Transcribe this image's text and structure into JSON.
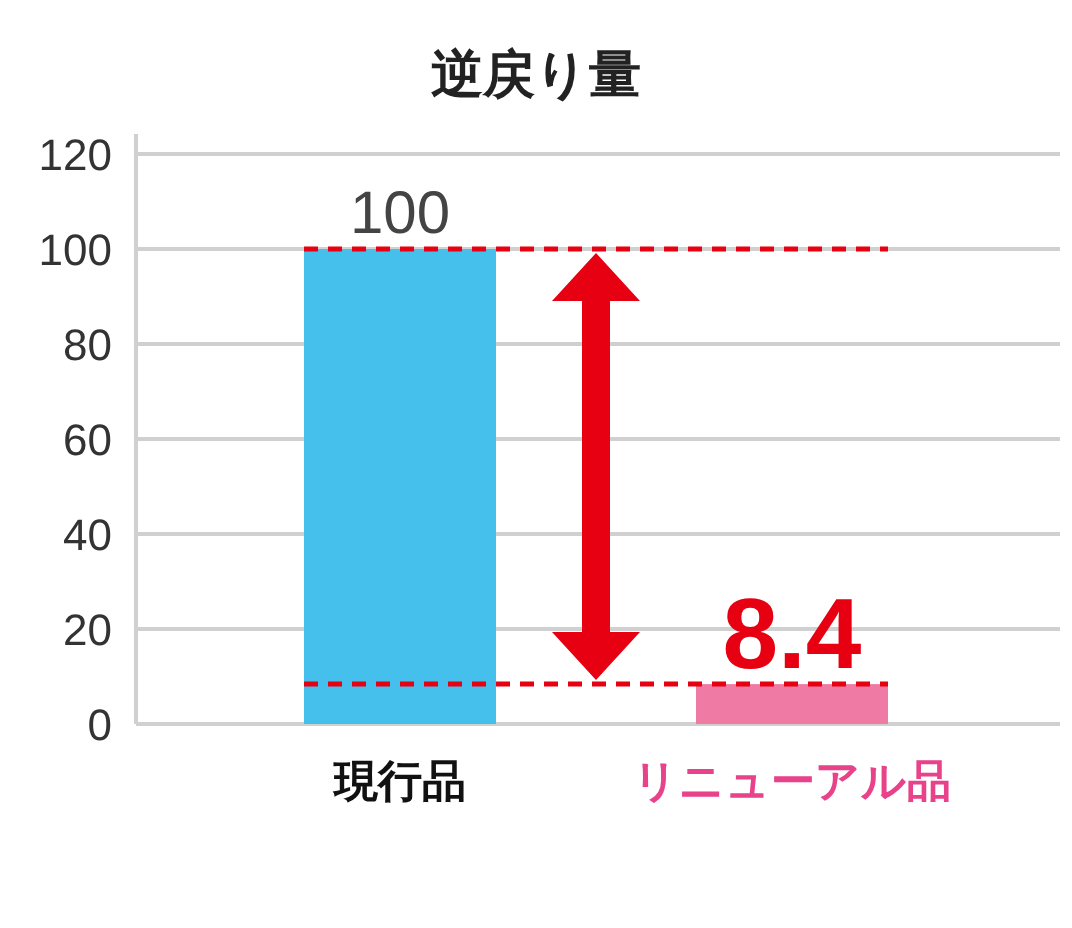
{
  "chart_data": {
    "type": "bar",
    "title": "逆戻り量",
    "categories": [
      "現行品",
      "リニューアル品"
    ],
    "values": [
      100,
      8.4
    ],
    "colors": [
      "#45bfec",
      "#ef7aa3"
    ],
    "value_labels": [
      "100",
      "8.4"
    ],
    "ylim": [
      0,
      120
    ],
    "yticks": [
      0,
      20,
      40,
      60,
      80,
      100,
      120
    ],
    "grid": "y",
    "ref_lines": [
      {
        "axis": "y",
        "value": 100,
        "color": "#e60012",
        "line_style": "dashed"
      },
      {
        "axis": "y",
        "value": 8.4,
        "color": "#e60012",
        "line_style": "dashed"
      }
    ]
  }
}
